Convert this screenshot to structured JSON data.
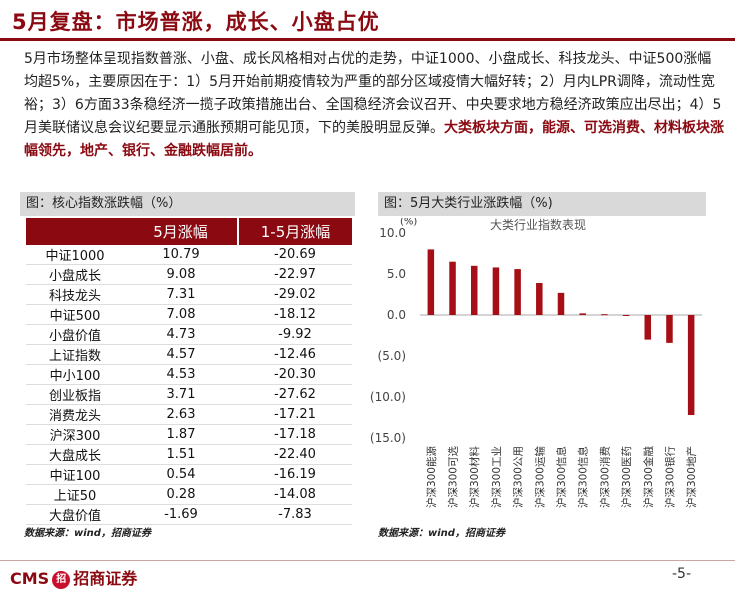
{
  "title": "5月复盘：市场普涨，成长、小盘占优",
  "paragraph": "5月市场整体呈现指数普涨、小盘、成长风格相对占优的走势，中证1000、小盘成长、科技龙头、中证500涨幅均超5%，主要原因在于：1）5月开始前期疫情较为严重的部分区域疫情大幅好转；2）月内LPR调降，流动性宽裕；3）6方面33条稳经济一揽子政策措施出台、全国稳经济会议召开、中央要求地方稳经济政策应出尽出；4）5月美联储议息会议纪要显示通胀预期可能见顶，下的美股明显反弹。",
  "paragraph_highlight": "大类板块方面，能源、可选消费、材料板块涨幅领先，地产、银行、金融跌幅居前。",
  "left_figure": {
    "caption": "图：核心指数涨跌幅（%）",
    "headers": [
      "",
      "5月涨幅",
      "1-5月涨幅"
    ],
    "rows": [
      [
        "中证1000",
        "10.79",
        "-20.69"
      ],
      [
        "小盘成长",
        "9.08",
        "-22.97"
      ],
      [
        "科技龙头",
        "7.31",
        "-29.02"
      ],
      [
        "中证500",
        "7.08",
        "-18.12"
      ],
      [
        "小盘价值",
        "4.73",
        "-9.92"
      ],
      [
        "上证指数",
        "4.57",
        "-12.46"
      ],
      [
        "中小100",
        "4.53",
        "-20.30"
      ],
      [
        "创业板指",
        "3.71",
        "-27.62"
      ],
      [
        "消费龙头",
        "2.63",
        "-17.21"
      ],
      [
        "沪深300",
        "1.87",
        "-17.18"
      ],
      [
        "大盘成长",
        "1.51",
        "-22.40"
      ],
      [
        "中证100",
        "0.54",
        "-16.19"
      ],
      [
        "上证50",
        "0.28",
        "-14.08"
      ],
      [
        "大盘价值",
        "-1.69",
        "-7.83"
      ]
    ],
    "source": "数据来源：wind，招商证券"
  },
  "right_figure": {
    "caption": "图：5月大类行业涨跌幅（%)",
    "source": "数据来源：wind，招商证券"
  },
  "chart_data": {
    "type": "bar",
    "title": "大类行业指数表现",
    "ylabel": "(%)",
    "ylim": [
      -15,
      10
    ],
    "yticks": [
      10,
      5,
      0,
      -5,
      -10,
      -15
    ],
    "ytick_labels": [
      "10.0",
      "5.0",
      "0.0",
      "(5.0)",
      "(10.0)",
      "(15.0)"
    ],
    "categories": [
      "沪深300能源",
      "沪深300可选",
      "沪深300材料",
      "沪深300工业",
      "沪深300公用",
      "沪深300运输",
      "沪深300信息",
      "沪深300信息",
      "沪深300消费",
      "沪深300医药",
      "沪深300金融",
      "沪深300银行",
      "沪深300地产"
    ],
    "values": [
      8.0,
      6.5,
      6.0,
      5.8,
      5.6,
      3.9,
      2.7,
      0.2,
      0.1,
      -0.1,
      -3.0,
      -3.4,
      -12.2
    ],
    "color": "#a50f15"
  },
  "footer": {
    "logo_text": "CMS",
    "logo_seal": "招",
    "company": "招商证券",
    "page": "-5-"
  }
}
